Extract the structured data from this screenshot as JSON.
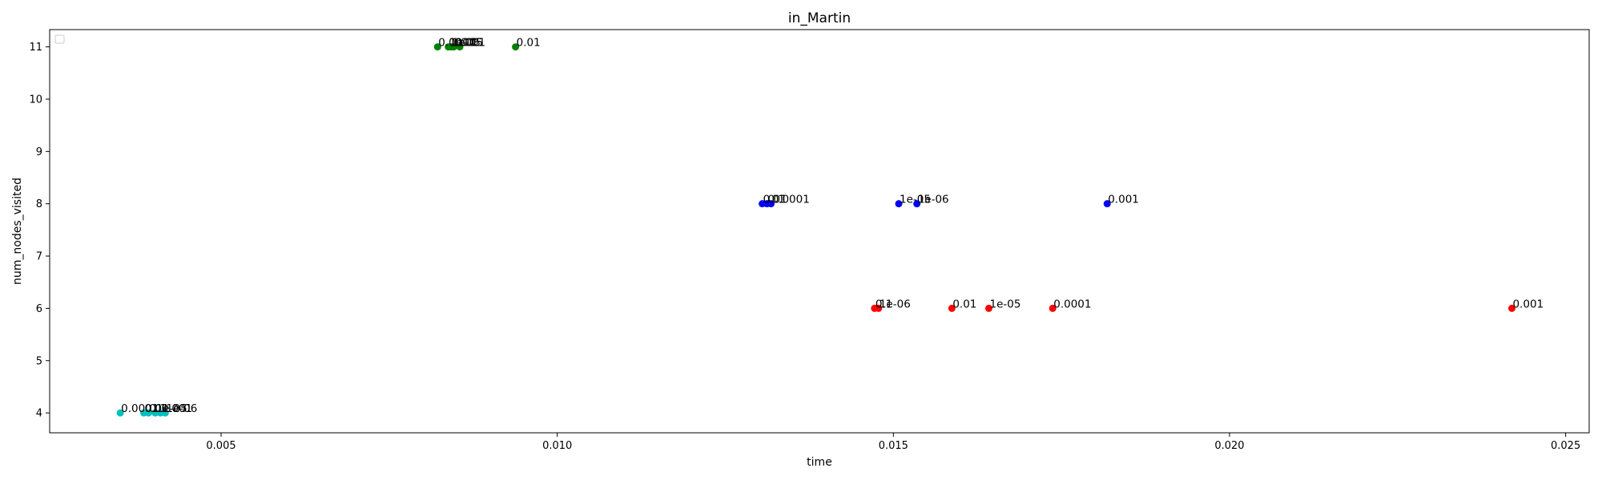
{
  "chart_data": {
    "type": "scatter",
    "title": "in_Martin",
    "xlabel": "time",
    "ylabel": "num_nodes_visited",
    "xlim": [
      0.00245,
      0.02535
    ],
    "ylim": [
      3.62,
      11.33
    ],
    "xticks": [
      0.005,
      0.01,
      0.015,
      0.02,
      0.025
    ],
    "xtick_labels": [
      "0.005",
      "0.010",
      "0.015",
      "0.020",
      "0.025"
    ],
    "yticks": [
      4,
      5,
      6,
      7,
      8,
      9,
      10,
      11
    ],
    "ytick_labels": [
      "4",
      "5",
      "6",
      "7",
      "8",
      "9",
      "10",
      "11"
    ],
    "grid": false,
    "legend": "top-left",
    "series": [
      {
        "color": "#008000",
        "points": [
          {
            "x": 0.00822,
            "y": 11,
            "label": "0.0001"
          },
          {
            "x": 0.00838,
            "y": 11,
            "label": "1e-06"
          },
          {
            "x": 0.00842,
            "y": 11,
            "label": "1e-05"
          },
          {
            "x": 0.00846,
            "y": 11,
            "label": "0.001"
          },
          {
            "x": 0.00855,
            "y": 11,
            "label": "0.1"
          },
          {
            "x": 0.00938,
            "y": 11,
            "label": "0.01"
          }
        ]
      },
      {
        "color": "#0000ff",
        "points": [
          {
            "x": 0.01305,
            "y": 8,
            "label": "0.01"
          },
          {
            "x": 0.01312,
            "y": 8,
            "label": "0.1"
          },
          {
            "x": 0.01318,
            "y": 8,
            "label": "0.0001"
          },
          {
            "x": 0.01508,
            "y": 8,
            "label": "1e-05"
          },
          {
            "x": 0.01535,
            "y": 8,
            "label": "1e-06"
          },
          {
            "x": 0.01818,
            "y": 8,
            "label": "0.001"
          }
        ]
      },
      {
        "color": "#ff0000",
        "points": [
          {
            "x": 0.01472,
            "y": 6,
            "label": "0.1"
          },
          {
            "x": 0.01478,
            "y": 6,
            "label": "1e-06"
          },
          {
            "x": 0.01587,
            "y": 6,
            "label": "0.01"
          },
          {
            "x": 0.01642,
            "y": 6,
            "label": "1e-05"
          },
          {
            "x": 0.01737,
            "y": 6,
            "label": "0.0001"
          },
          {
            "x": 0.0242,
            "y": 6,
            "label": "0.001"
          }
        ]
      },
      {
        "color": "#00bfbf",
        "points": [
          {
            "x": 0.0035,
            "y": 4,
            "label": "0.0001"
          },
          {
            "x": 0.00385,
            "y": 4,
            "label": "0.01"
          },
          {
            "x": 0.00392,
            "y": 4,
            "label": "0.1"
          },
          {
            "x": 0.00402,
            "y": 4,
            "label": "1e-05"
          },
          {
            "x": 0.0041,
            "y": 4,
            "label": "0.001"
          },
          {
            "x": 0.00417,
            "y": 4,
            "label": "1e-06"
          }
        ]
      }
    ]
  }
}
